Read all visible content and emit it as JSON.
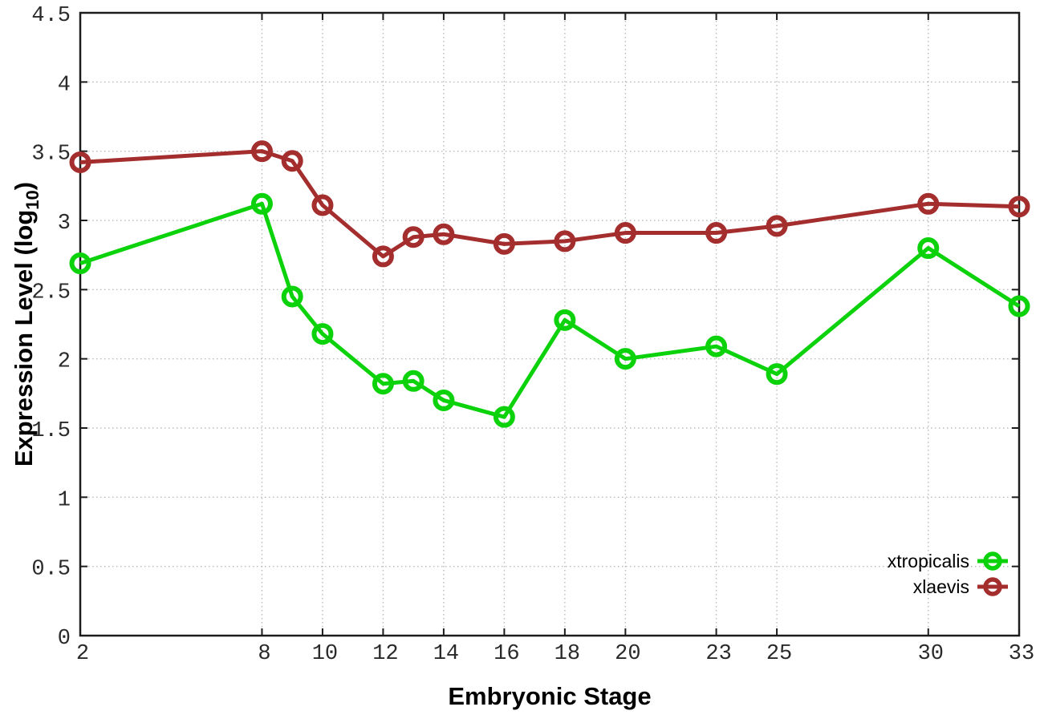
{
  "chart_data": {
    "type": "line",
    "title": "",
    "xlabel": "Embryonic Stage",
    "ylabel": "Expression Level (log10)",
    "ylabel_parts": {
      "base": "Expression Level (log",
      "sub": "10",
      "close": ")"
    },
    "x": [
      2,
      8,
      9,
      10,
      12,
      13,
      14,
      16,
      18,
      20,
      23,
      25,
      30,
      33
    ],
    "xticks": [
      2,
      8,
      10,
      12,
      14,
      16,
      18,
      20,
      23,
      25,
      30,
      33
    ],
    "xtick_labels": [
      "2",
      "8",
      "10",
      "12",
      "14",
      "16",
      "18",
      "20",
      "23",
      "25",
      "30",
      "33"
    ],
    "yticks": [
      0,
      0.5,
      1,
      1.5,
      2,
      2.5,
      3,
      3.5,
      4,
      4.5
    ],
    "ytick_labels": [
      "0",
      "0.5",
      "1",
      "1.5",
      "2",
      "2.5",
      "3",
      "3.5",
      "4",
      "4.5"
    ],
    "xlim": [
      2,
      33
    ],
    "ylim": [
      0,
      4.5
    ],
    "grid": true,
    "marker": "open-circle",
    "legend_position": "inside-bottom-right",
    "series": [
      {
        "name": "xtropicalis",
        "color": "#0BD20B",
        "values": [
          2.69,
          3.12,
          2.45,
          2.18,
          1.82,
          1.84,
          1.7,
          1.58,
          2.28,
          2.0,
          2.09,
          1.89,
          2.8,
          2.38
        ]
      },
      {
        "name": "xlaevis",
        "color": "#A42D2D",
        "values": [
          3.42,
          3.5,
          3.43,
          3.11,
          2.74,
          2.88,
          2.9,
          2.83,
          2.85,
          2.91,
          2.91,
          2.96,
          3.12,
          3.1
        ]
      }
    ],
    "colors": {
      "grid": "#bbbbbb",
      "axis": "#1c1c1c",
      "tick_text": "#2a2a2a",
      "title_text": "#000000"
    }
  }
}
